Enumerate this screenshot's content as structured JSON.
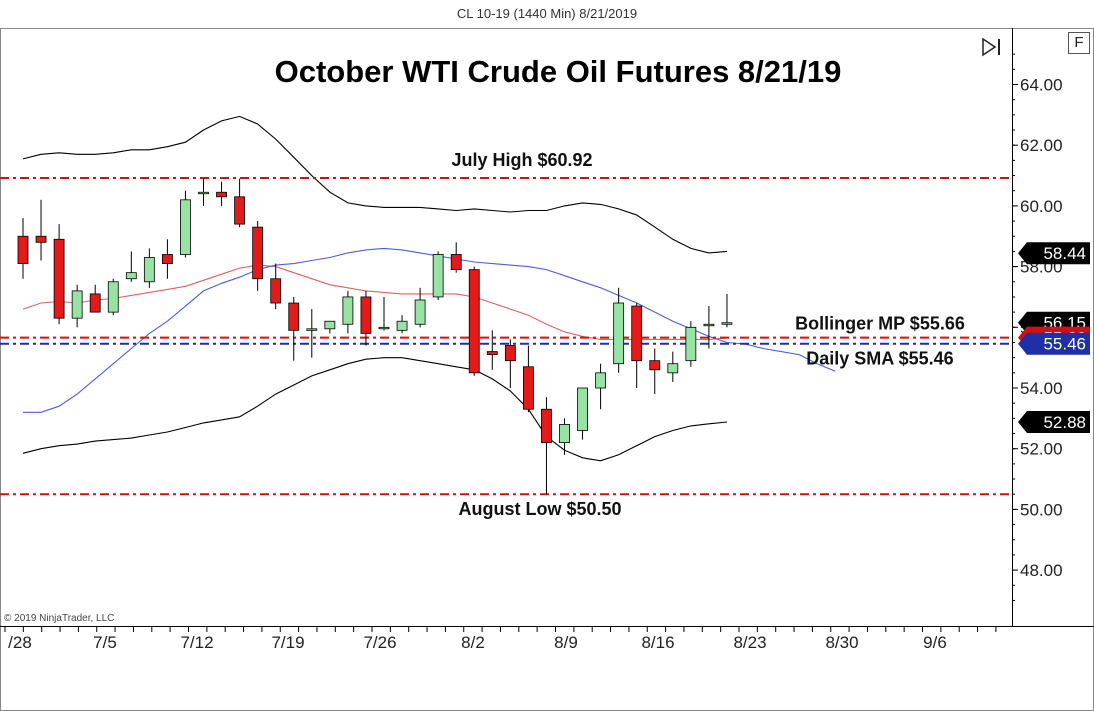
{
  "header": {
    "instrument": "CL 10-19 (1440 Min)  8/21/2019"
  },
  "controls": {
    "format_button": "F",
    "scroll_icon": "scroll-to-end-icon"
  },
  "copyright": "© 2019 NinjaTrader, LLC",
  "chart_data": {
    "type": "candlestick",
    "title": "October WTI Crude Oil Futures 8/21/19",
    "y_ticks": [
      "64.00",
      "62.00",
      "60.00",
      "58.00",
      "56.00",
      "54.00",
      "52.00",
      "50.00",
      "48.00"
    ],
    "y_tick_values": [
      64,
      62,
      60,
      58,
      56,
      54,
      52,
      50,
      48
    ],
    "ylim": [
      46.8,
      65.7
    ],
    "x_labels": [
      "/28",
      "7/5",
      "7/12",
      "7/19",
      "7/26",
      "8/2",
      "8/9",
      "8/16",
      "8/23",
      "8/30",
      "9/6"
    ],
    "candles": [
      {
        "o": 59.0,
        "h": 59.6,
        "l": 57.6,
        "c": 58.1
      },
      {
        "o": 59.0,
        "h": 60.2,
        "l": 58.2,
        "c": 58.8
      },
      {
        "o": 58.9,
        "h": 59.4,
        "l": 56.1,
        "c": 56.3
      },
      {
        "o": 56.3,
        "h": 57.4,
        "l": 56.0,
        "c": 57.2
      },
      {
        "o": 57.1,
        "h": 57.4,
        "l": 56.5,
        "c": 56.5
      },
      {
        "o": 56.5,
        "h": 57.6,
        "l": 56.4,
        "c": 57.5
      },
      {
        "o": 57.6,
        "h": 58.5,
        "l": 57.5,
        "c": 57.8
      },
      {
        "o": 57.5,
        "h": 58.6,
        "l": 57.3,
        "c": 58.3
      },
      {
        "o": 58.4,
        "h": 58.9,
        "l": 57.6,
        "c": 58.1
      },
      {
        "o": 58.4,
        "h": 60.5,
        "l": 58.3,
        "c": 60.2
      },
      {
        "o": 60.4,
        "h": 60.9,
        "l": 60.0,
        "c": 60.45
      },
      {
        "o": 60.45,
        "h": 60.8,
        "l": 60.0,
        "c": 60.3
      },
      {
        "o": 60.3,
        "h": 60.9,
        "l": 59.3,
        "c": 59.4
      },
      {
        "o": 59.3,
        "h": 59.5,
        "l": 57.2,
        "c": 57.6
      },
      {
        "o": 57.6,
        "h": 58.1,
        "l": 56.6,
        "c": 56.8
      },
      {
        "o": 56.8,
        "h": 57.0,
        "l": 54.9,
        "c": 55.9
      },
      {
        "o": 55.9,
        "h": 56.6,
        "l": 55.0,
        "c": 55.95
      },
      {
        "o": 55.95,
        "h": 56.2,
        "l": 55.8,
        "c": 56.2
      },
      {
        "o": 56.1,
        "h": 57.2,
        "l": 55.8,
        "c": 57.0
      },
      {
        "o": 57.0,
        "h": 57.2,
        "l": 55.4,
        "c": 55.8
      },
      {
        "o": 56.0,
        "h": 57.0,
        "l": 55.9,
        "c": 56.0
      },
      {
        "o": 55.9,
        "h": 56.4,
        "l": 55.8,
        "c": 56.2
      },
      {
        "o": 56.1,
        "h": 57.3,
        "l": 56.0,
        "c": 56.9
      },
      {
        "o": 57.0,
        "h": 58.5,
        "l": 56.9,
        "c": 58.4
      },
      {
        "o": 58.4,
        "h": 58.8,
        "l": 57.8,
        "c": 57.9
      },
      {
        "o": 57.9,
        "h": 58.0,
        "l": 54.4,
        "c": 54.5
      },
      {
        "o": 55.2,
        "h": 55.9,
        "l": 54.6,
        "c": 55.1
      },
      {
        "o": 55.4,
        "h": 55.6,
        "l": 54.0,
        "c": 54.9
      },
      {
        "o": 54.7,
        "h": 55.4,
        "l": 53.2,
        "c": 53.3
      },
      {
        "o": 53.3,
        "h": 53.7,
        "l": 50.5,
        "c": 52.2
      },
      {
        "o": 52.2,
        "h": 53.0,
        "l": 51.8,
        "c": 52.8
      },
      {
        "o": 52.6,
        "h": 54.0,
        "l": 52.3,
        "c": 54.0
      },
      {
        "o": 54.0,
        "h": 54.8,
        "l": 53.3,
        "c": 54.5
      },
      {
        "o": 54.8,
        "h": 57.3,
        "l": 54.5,
        "c": 56.8
      },
      {
        "o": 56.7,
        "h": 56.8,
        "l": 54.0,
        "c": 54.9
      },
      {
        "o": 54.9,
        "h": 55.3,
        "l": 53.8,
        "c": 54.6
      },
      {
        "o": 54.5,
        "h": 55.2,
        "l": 54.2,
        "c": 54.8
      },
      {
        "o": 54.9,
        "h": 56.2,
        "l": 54.7,
        "c": 56.0
      },
      {
        "o": 56.1,
        "h": 56.7,
        "l": 55.3,
        "c": 56.1
      },
      {
        "o": 56.1,
        "h": 57.1,
        "l": 56.0,
        "c": 56.15
      }
    ],
    "bollinger_upper": [
      61.55,
      61.7,
      61.75,
      61.7,
      61.7,
      61.75,
      61.85,
      61.85,
      61.95,
      62.1,
      62.5,
      62.8,
      62.95,
      62.7,
      62.2,
      61.6,
      61.0,
      60.45,
      60.1,
      60.0,
      59.95,
      59.95,
      59.95,
      59.9,
      59.85,
      59.9,
      59.85,
      59.8,
      59.85,
      59.85,
      60.0,
      60.1,
      60.05,
      59.9,
      59.7,
      59.3,
      58.9,
      58.6,
      58.45,
      58.5
    ],
    "bollinger_mid": [
      56.6,
      56.8,
      56.85,
      56.8,
      56.9,
      56.95,
      57.05,
      57.15,
      57.25,
      57.35,
      57.55,
      57.75,
      57.95,
      58.05,
      58.0,
      57.8,
      57.6,
      57.4,
      57.3,
      57.2,
      57.15,
      57.1,
      57.1,
      57.1,
      57.1,
      57.0,
      56.8,
      56.6,
      56.4,
      56.1,
      55.85,
      55.7,
      55.6,
      55.6,
      55.6,
      55.6,
      55.6,
      55.6,
      55.6,
      55.65
    ],
    "bollinger_lower": [
      51.85,
      52.0,
      52.1,
      52.15,
      52.25,
      52.3,
      52.35,
      52.45,
      52.55,
      52.7,
      52.85,
      52.95,
      53.05,
      53.4,
      53.8,
      54.1,
      54.4,
      54.6,
      54.8,
      54.95,
      55.0,
      55.0,
      54.9,
      54.8,
      54.7,
      54.6,
      54.3,
      53.9,
      53.3,
      52.4,
      51.95,
      51.7,
      51.6,
      51.8,
      52.1,
      52.4,
      52.6,
      52.75,
      52.82,
      52.88
    ],
    "daily_sma": [
      53.2,
      53.2,
      53.4,
      53.8,
      54.3,
      54.8,
      55.3,
      55.8,
      56.2,
      56.7,
      57.2,
      57.45,
      57.65,
      57.9,
      58.05,
      58.1,
      58.2,
      58.3,
      58.45,
      58.55,
      58.6,
      58.55,
      58.45,
      58.35,
      58.25,
      58.15,
      58.1,
      58.05,
      58.0,
      57.9,
      57.7,
      57.5,
      57.3,
      57.05,
      56.8,
      56.5,
      56.2,
      55.95,
      55.7,
      55.5,
      55.45,
      55.3,
      55.2,
      55.1,
      54.8,
      54.55
    ],
    "horizontal_lines": [
      {
        "label": "July High $60.92",
        "value": 60.92,
        "color": "#d11111"
      },
      {
        "label": "Bollinger MP $55.66",
        "value": 55.66,
        "color": "#d11111"
      },
      {
        "label": "Daily SMA $55.46",
        "value": 55.46,
        "color": "#1f2fa8"
      },
      {
        "label": "August Low $50.50",
        "value": 50.5,
        "color": "#d11111"
      }
    ],
    "price_tags": [
      {
        "text": "58.44",
        "value": 58.44,
        "color": "#000000"
      },
      {
        "text": "56.15",
        "value": 56.15,
        "color": "#000000"
      },
      {
        "text": "55.66",
        "value": 55.66,
        "color": "#d11111"
      },
      {
        "text": "55.46",
        "value": 55.46,
        "color": "#1f2fa8"
      },
      {
        "text": "52.88",
        "value": 52.88,
        "color": "#000000"
      }
    ],
    "colors": {
      "up": "#98e3a3",
      "down": "#e31a1a",
      "upper_lower": "#000000",
      "mid": "#e06060",
      "sma": "#4a5ee0"
    }
  }
}
